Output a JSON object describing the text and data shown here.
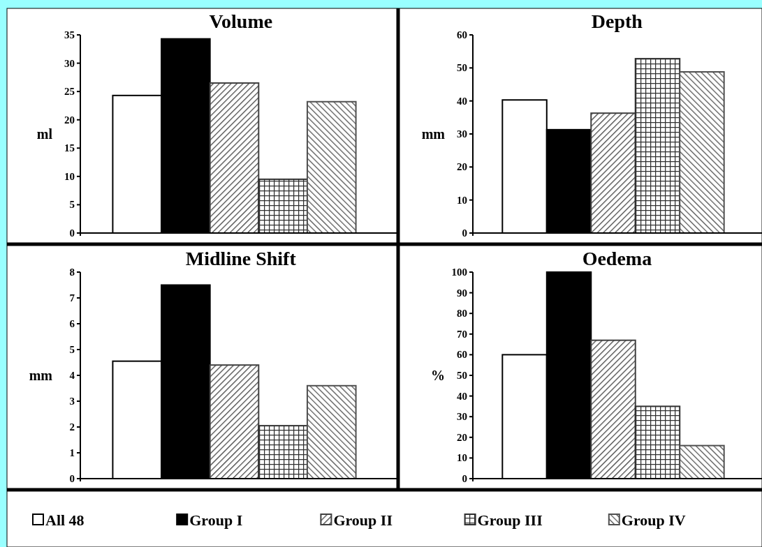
{
  "chart_data": [
    {
      "type": "bar",
      "title": "Volume",
      "ylabel": "ml",
      "categories": [
        null
      ],
      "ylim": [
        0,
        35
      ],
      "yticks": [
        0,
        5,
        10,
        15,
        20,
        25,
        30,
        35
      ],
      "legend": "bottom",
      "series": [
        {
          "name": "All 48",
          "color": "#ffffff",
          "values": [
            24.3
          ]
        },
        {
          "name": "Group I",
          "color": "#000000",
          "values": [
            34.3
          ]
        },
        {
          "name": "Group II",
          "color": "#404040",
          "values": [
            26.5
          ]
        },
        {
          "name": "Group III",
          "color": "#303030",
          "values": [
            9.5
          ]
        },
        {
          "name": "Group IV",
          "color": "#505050",
          "values": [
            23.2
          ]
        }
      ]
    },
    {
      "type": "bar",
      "title": "Depth",
      "ylabel": "mm",
      "categories": [
        null
      ],
      "ylim": [
        0,
        60
      ],
      "yticks": [
        0,
        10,
        20,
        30,
        40,
        50,
        60
      ],
      "series": [
        {
          "color": "#ffffff",
          "values": [
            40.3
          ]
        },
        {
          "color": "#000000",
          "values": [
            31.3
          ]
        },
        {
          "color": "#404040",
          "values": [
            36.3
          ]
        },
        {
          "color": "#303030",
          "values": [
            52.8
          ]
        },
        {
          "color": "#505050",
          "values": [
            48.8
          ]
        }
      ]
    },
    {
      "type": "bar",
      "title": "Midline Shift",
      "ylabel": "mm",
      "categories": [
        null
      ],
      "ylim": [
        0,
        8
      ],
      "yticks": [
        0,
        1,
        2,
        3,
        4,
        5,
        6,
        7,
        8
      ],
      "series": [
        {
          "color": "#ffffff",
          "values": [
            4.55
          ]
        },
        {
          "color": "#000000",
          "values": [
            7.5
          ]
        },
        {
          "color": "#404040",
          "values": [
            4.4
          ]
        },
        {
          "color": "#303030",
          "values": [
            2.05
          ]
        },
        {
          "color": "#505050",
          "values": [
            3.6
          ]
        }
      ]
    },
    {
      "type": "bar",
      "title": "Oedema",
      "ylabel": "%",
      "categories": [
        null
      ],
      "ylim": [
        0,
        100
      ],
      "yticks": [
        0,
        10,
        20,
        30,
        40,
        50,
        60,
        70,
        80,
        90,
        100
      ],
      "series": [
        {
          "color": "#ffffff",
          "values": [
            60
          ]
        },
        {
          "color": "#000000",
          "values": [
            100
          ]
        },
        {
          "color": "#404040",
          "values": [
            67
          ]
        },
        {
          "color": "#303030",
          "values": [
            35
          ]
        },
        {
          "color": "#505050",
          "values": [
            16
          ]
        }
      ]
    }
  ]
}
